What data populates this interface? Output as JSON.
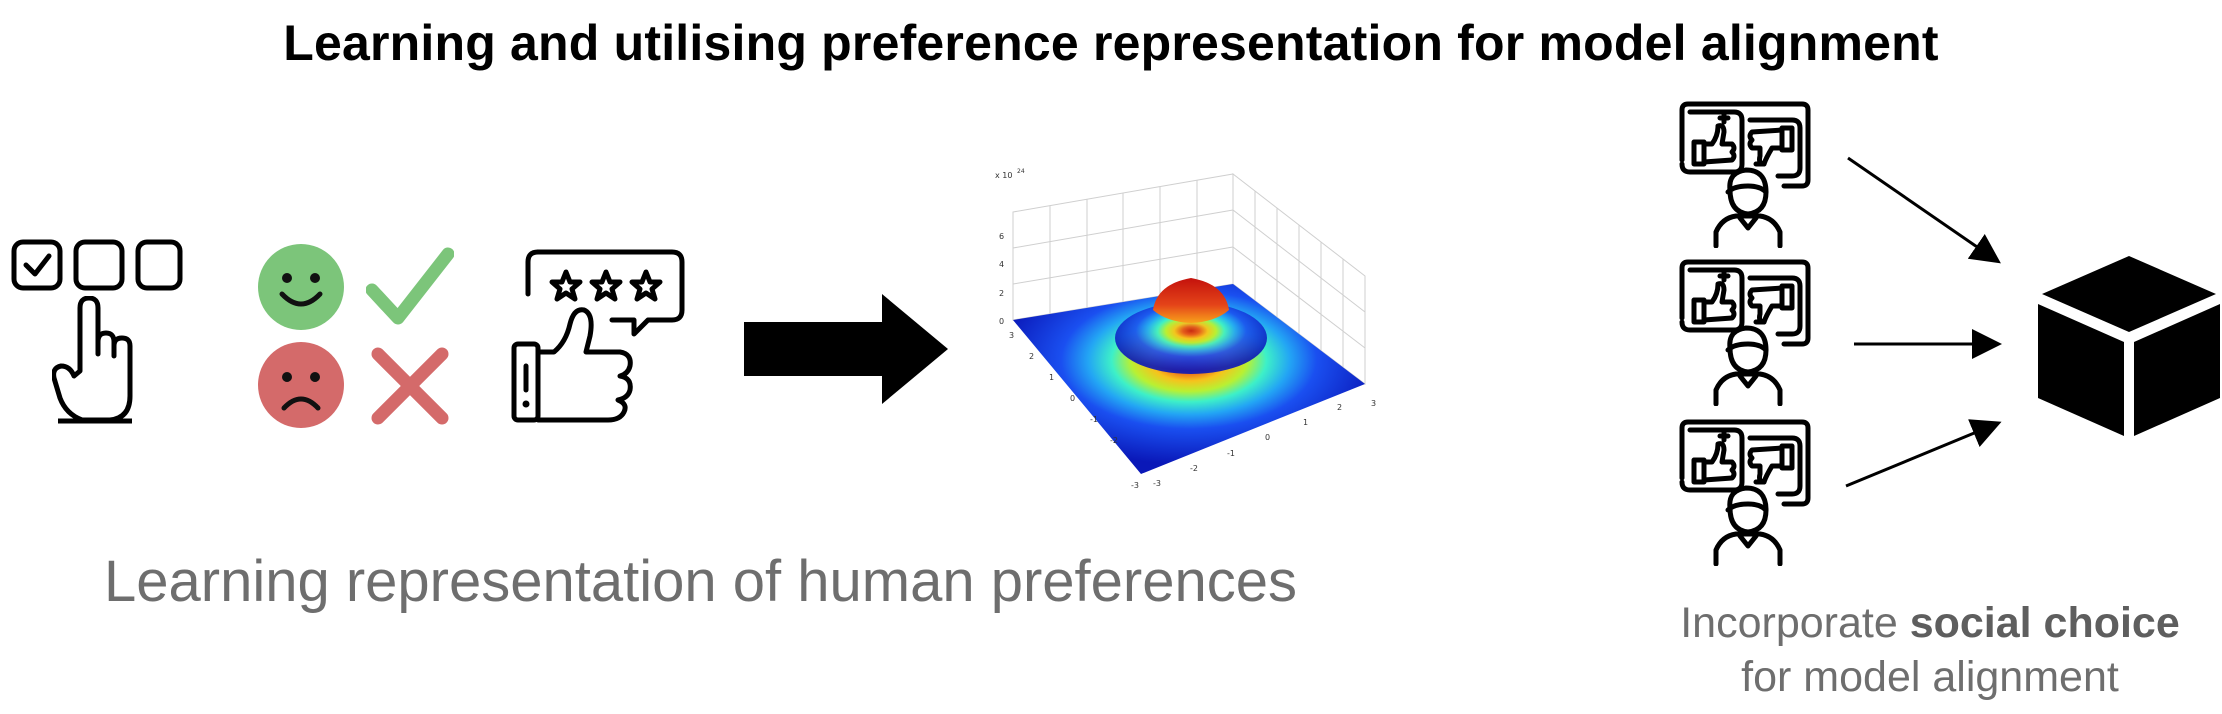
{
  "title": "Learning and utilising preference representation for model alignment",
  "left_caption": "Learning representation of human preferences",
  "right_caption": {
    "line1_prefix": "Incorporate ",
    "line1_bold": "social choice",
    "line2": "for model alignment"
  },
  "plot": {
    "z_scale_label": "x 10",
    "z_scale_exp": "24",
    "z_ticks": [
      "0",
      "2",
      "4",
      "6"
    ],
    "x_ticks": [
      "-3",
      "-2",
      "-1",
      "0",
      "1",
      "2",
      "3"
    ],
    "y_ticks": [
      "-3",
      "-2",
      "-1",
      "0",
      "1",
      "2",
      "3"
    ]
  },
  "colors": {
    "happy_face": "#7cc57a",
    "sad_face": "#d46a6a",
    "check": "#7cc57a",
    "cross": "#d46a6a",
    "caption": "#6e6e6e"
  }
}
